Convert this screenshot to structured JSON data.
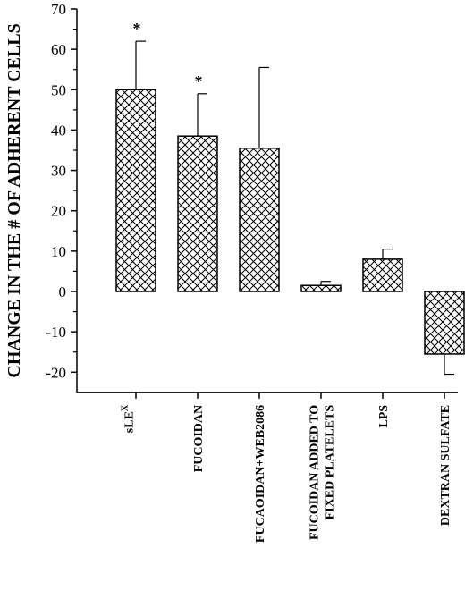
{
  "chart_data": {
    "type": "bar",
    "title": "",
    "xlabel": "",
    "ylabel": "CHANGE IN THE # OF ADHERENT CELLS",
    "ylim": [
      -25,
      70
    ],
    "yticks": [
      "70",
      "60",
      "50",
      "40",
      "30",
      "20",
      "10",
      "0",
      "-10",
      "-20"
    ],
    "ytick_values": [
      70,
      60,
      50,
      40,
      30,
      20,
      10,
      0,
      -10,
      -20
    ],
    "categories": [
      {
        "lines": [
          "sLE",
          "X"
        ],
        "superscript": true
      },
      {
        "lines": [
          "FUCOIDAN"
        ]
      },
      {
        "lines": [
          "FUCAOIDAN+WEB2086"
        ]
      },
      {
        "lines": [
          "FUCOIDAN ADDED TO",
          "FIXED PLATELETS"
        ]
      },
      {
        "lines": [
          "LPS"
        ]
      },
      {
        "lines": [
          "DEXTRAN SULFATE"
        ]
      }
    ],
    "values": [
      50,
      38.5,
      35.5,
      1.5,
      8,
      -15.5
    ],
    "errors": [
      12,
      10.5,
      20,
      1,
      2.5,
      5
    ],
    "significance": [
      "*",
      "*",
      "",
      "",
      "",
      ""
    ],
    "bar_fill": "crosshatch",
    "bar_color": "#000000",
    "grid": false,
    "legend": "none"
  }
}
